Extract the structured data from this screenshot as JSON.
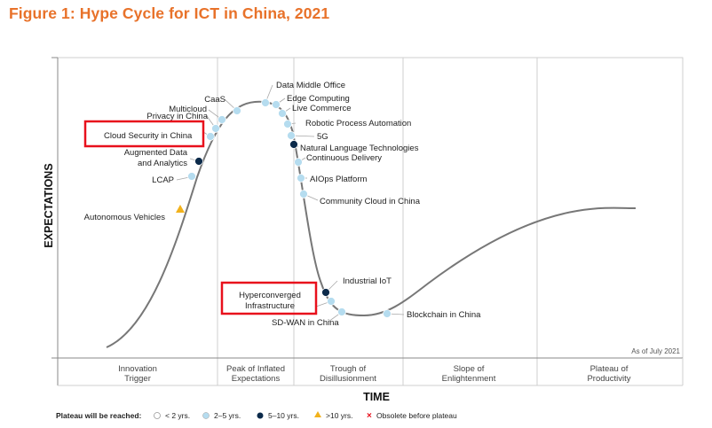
{
  "title": "Figure 1: Hype Cycle for ICT in China, 2021",
  "y_axis_label": "EXPECTATIONS",
  "x_axis_label": "TIME",
  "as_of": "As of July 2021",
  "colors": {
    "title": "#e8722a",
    "curve": "#777777",
    "dot_light": "#b5dcef",
    "dot_dark": "#0b2a4a",
    "dot_yellow": "#f2b21c",
    "highlight_box": "#e8101c"
  },
  "phases": [
    {
      "line1": "Innovation",
      "line2": "Trigger"
    },
    {
      "line1": "Peak of Inflated",
      "line2": "Expectations"
    },
    {
      "line1": "Trough of",
      "line2": "Disillusionment"
    },
    {
      "line1": "Slope of",
      "line2": "Enlightenment"
    },
    {
      "line1": "Plateau of",
      "line2": "Productivity"
    }
  ],
  "technologies": [
    {
      "name": "Autonomous Vehicles",
      "plateau": ">10 yrs."
    },
    {
      "name": "LCAP",
      "plateau": "2–5 yrs."
    },
    {
      "name": "Augmented Data and Analytics",
      "line1": "Augmented Data",
      "line2": "and Analytics",
      "plateau": "5–10 yrs."
    },
    {
      "name": "Cloud Security in China",
      "plateau": "2–5 yrs.",
      "highlighted": true
    },
    {
      "name": "Privacy in China",
      "plateau": "2–5 yrs."
    },
    {
      "name": "Multicloud",
      "plateau": "2–5 yrs."
    },
    {
      "name": "CaaS",
      "plateau": "2–5 yrs."
    },
    {
      "name": "Data Middle Office",
      "plateau": "2–5 yrs."
    },
    {
      "name": "Edge Computing",
      "plateau": "2–5 yrs."
    },
    {
      "name": "Live Commerce",
      "plateau": "2–5 yrs."
    },
    {
      "name": "Robotic Process Automation",
      "plateau": "2–5 yrs."
    },
    {
      "name": "5G",
      "plateau": "2–5 yrs."
    },
    {
      "name": "Natural Language Technologies",
      "plateau": "5–10 yrs."
    },
    {
      "name": "Continuous Delivery",
      "plateau": "2–5 yrs."
    },
    {
      "name": "AIOps Platform",
      "plateau": "2–5 yrs."
    },
    {
      "name": "Community Cloud in China",
      "plateau": "2–5 yrs."
    },
    {
      "name": "Industrial IoT",
      "plateau": "5–10 yrs."
    },
    {
      "name": "Hyperconverged Infrastructure",
      "line1": "Hyperconverged",
      "line2": "Infrastructure",
      "plateau": "2–5 yrs.",
      "highlighted": true
    },
    {
      "name": "SD-WAN in China",
      "plateau": "2–5 yrs."
    },
    {
      "name": "Blockchain in China",
      "plateau": "2–5 yrs."
    }
  ],
  "legend": {
    "title": "Plateau will be reached:",
    "items": [
      {
        "label": "< 2 yrs.",
        "icon": "hollow-circle"
      },
      {
        "label": "2–5 yrs.",
        "icon": "light-blue-circle"
      },
      {
        "label": "5–10 yrs.",
        "icon": "dark-blue-circle"
      },
      {
        "label": ">10 yrs.",
        "icon": "yellow-triangle"
      },
      {
        "label": "Obsolete before plateau",
        "icon": "red-x"
      }
    ]
  }
}
